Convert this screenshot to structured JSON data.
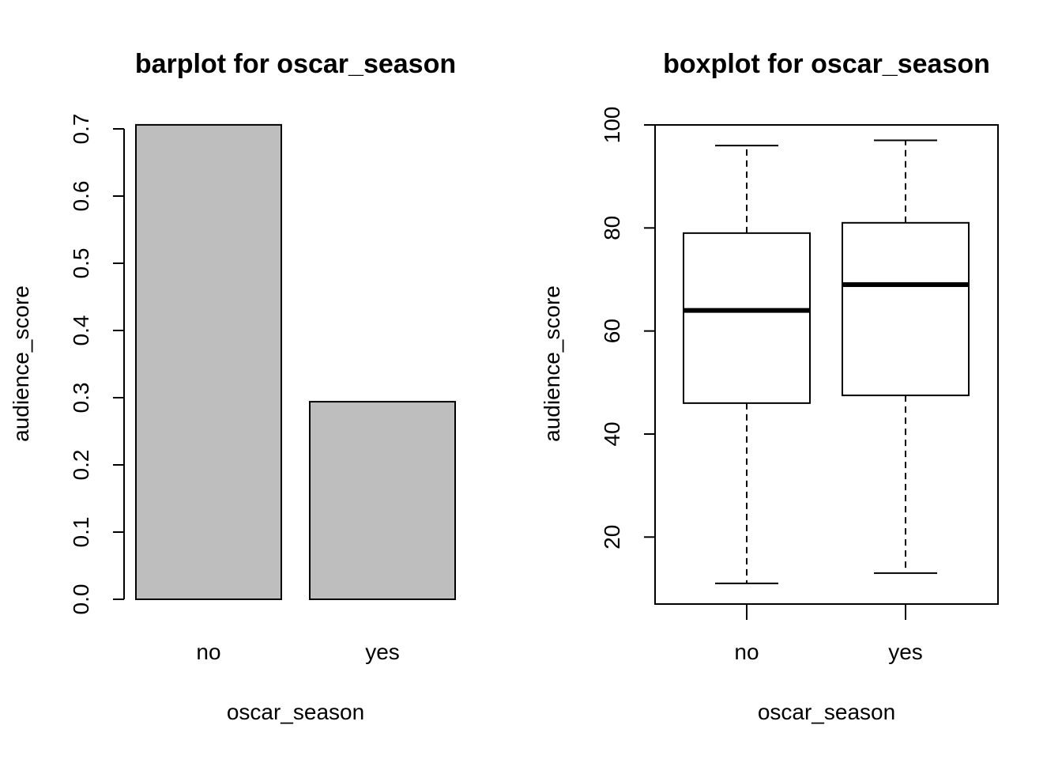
{
  "chart_data": [
    {
      "type": "bar",
      "title": "barplot for oscar_season",
      "xlabel": "oscar_season",
      "ylabel": "audience_score",
      "categories": [
        "no",
        "yes"
      ],
      "values": [
        0.706,
        0.294
      ],
      "ylim": [
        0,
        0.7
      ],
      "yticks": [
        0.0,
        0.1,
        0.2,
        0.3,
        0.4,
        0.5,
        0.6,
        0.7
      ],
      "ytick_labels": [
        "0.0",
        "0.1",
        "0.2",
        "0.3",
        "0.4",
        "0.5",
        "0.6",
        "0.7"
      ],
      "bar_color": "#bebebe",
      "grid": false
    },
    {
      "type": "boxplot",
      "title": "boxplot for oscar_season",
      "xlabel": "oscar_season",
      "ylabel": "audience_score",
      "categories": [
        "no",
        "yes"
      ],
      "boxes": [
        {
          "min": 11,
          "q1": 46,
          "median": 64,
          "q3": 79,
          "max": 96
        },
        {
          "min": 13,
          "q1": 47.5,
          "median": 69,
          "q3": 81,
          "max": 97
        }
      ],
      "ylim": [
        7,
        100
      ],
      "yticks": [
        20,
        40,
        60,
        80,
        100
      ],
      "ytick_labels": [
        "20",
        "40",
        "60",
        "80",
        "100"
      ],
      "grid": false
    }
  ]
}
